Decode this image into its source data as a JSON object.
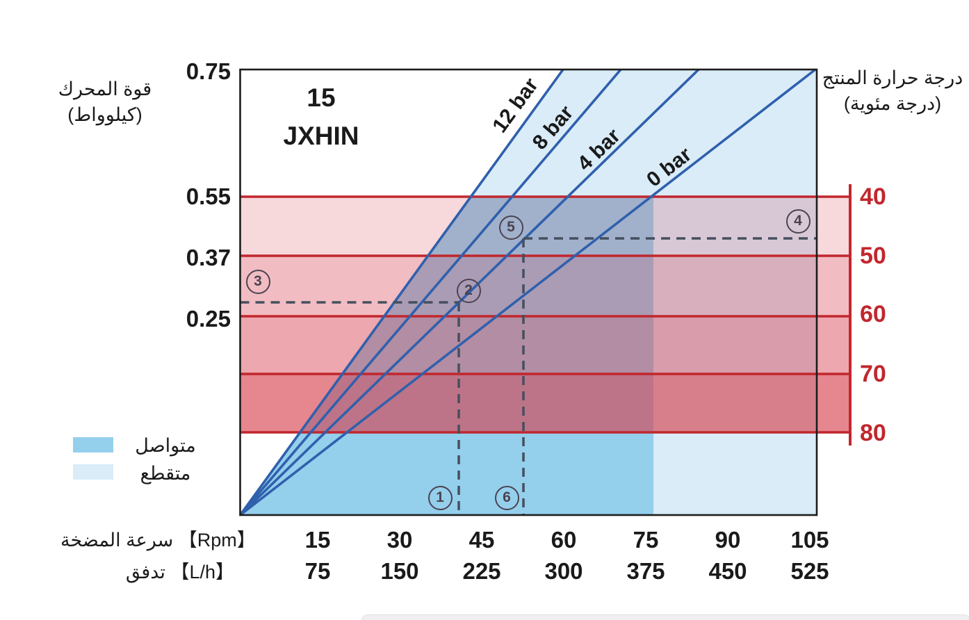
{
  "colors": {
    "line_blue": "#3060ad",
    "continuous_fill": "#94cfec",
    "intermittent_fill": "#d9ecf8",
    "temperature_red": "#c1272d",
    "band_base": "#d73c4b",
    "dashed": "#454f5e",
    "marker": "#4b4350",
    "text": "#1a1a1a"
  },
  "chart_data": {
    "type": "line",
    "title_line1": "15",
    "title_line2": "JXHIN",
    "x_axis": {
      "rpm_label": "سرعة المضخة 【Rpm】",
      "rpm_ticks": [
        "15",
        "30",
        "45",
        "60",
        "75",
        "90",
        "105"
      ],
      "flow_label": "تدفق 【L/h】",
      "flow_ticks": [
        "75",
        "150",
        "225",
        "300",
        "375",
        "450",
        "525"
      ]
    },
    "y_axis_left": {
      "title_line1": "قوة المحرك",
      "title_line2": "(كيلوواط)",
      "ticks": [
        "0.75",
        "0.55",
        "0.37",
        "0.25"
      ]
    },
    "y_axis_right": {
      "title_line1": "درجة حرارة المنتج",
      "title_line2": "(درجة مئوية)",
      "ticks": [
        "40",
        "50",
        "60",
        "70",
        "80"
      ]
    },
    "series": [
      {
        "name": "12 bar",
        "pressure_bar": 12,
        "points": [
          {
            "rpm": 0,
            "kw": 0
          },
          {
            "rpm": 59,
            "kw": 0.75
          }
        ]
      },
      {
        "name": "8 bar",
        "pressure_bar": 8,
        "points": [
          {
            "rpm": 0,
            "kw": 0
          },
          {
            "rpm": 70,
            "kw": 0.75
          }
        ]
      },
      {
        "name": "4 bar",
        "pressure_bar": 4,
        "points": [
          {
            "rpm": 0,
            "kw": 0
          },
          {
            "rpm": 84,
            "kw": 0.75
          }
        ]
      },
      {
        "name": "0 bar",
        "pressure_bar": 0,
        "points": [
          {
            "rpm": 0,
            "kw": 0
          },
          {
            "rpm": 106,
            "kw": 0.75
          }
        ]
      }
    ],
    "temperature_bands": [
      {
        "from": 40,
        "to": 50,
        "alpha": 0.2
      },
      {
        "from": 50,
        "to": 60,
        "alpha": 0.34
      },
      {
        "from": 60,
        "to": 70,
        "alpha": 0.45
      },
      {
        "from": 70,
        "to": 80,
        "alpha": 0.62
      }
    ],
    "legend": [
      {
        "label": "متواصل"
      },
      {
        "label": "متقطع"
      }
    ],
    "continuous_region_max_rpm": 76,
    "annotations": [
      {
        "label": "1",
        "rpm": 40
      },
      {
        "label": "2",
        "rpm": 40,
        "kw": 0.28
      },
      {
        "label": "3",
        "kw": 0.28
      },
      {
        "label": "4",
        "kw": 0.43
      },
      {
        "label": "5",
        "rpm": 52,
        "kw": 0.43
      },
      {
        "label": "6",
        "rpm": 52
      }
    ],
    "ylabel": "kW",
    "xlabel": "Rpm / L/h",
    "grid": false,
    "legend_position": "bottom-left"
  }
}
